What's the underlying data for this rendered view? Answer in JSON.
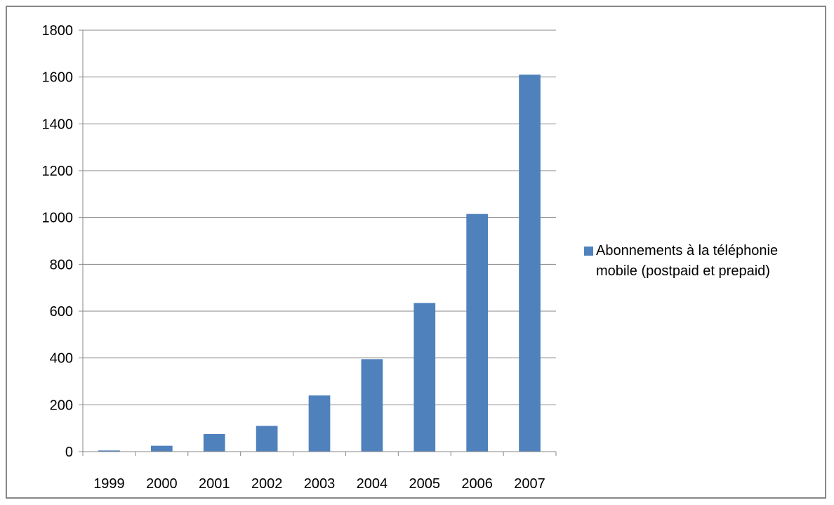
{
  "chart_data": {
    "type": "bar",
    "title": "",
    "xlabel": "",
    "ylabel": "",
    "categories": [
      "1999",
      "2000",
      "2001",
      "2002",
      "2003",
      "2004",
      "2005",
      "2006",
      "2007"
    ],
    "series": [
      {
        "name": "Abonnements à la téléphonie mobile (postpaid et prepaid)",
        "values": [
          5,
          25,
          75,
          110,
          240,
          395,
          635,
          1015,
          1610
        ],
        "color": "#4f81bd"
      }
    ],
    "ylim": [
      0,
      1800
    ],
    "yticks": [
      "0",
      "200",
      "400",
      "600",
      "800",
      "1000",
      "1200",
      "1400",
      "1600",
      "1800"
    ],
    "grid": "horizontal",
    "legend_position": "right"
  }
}
